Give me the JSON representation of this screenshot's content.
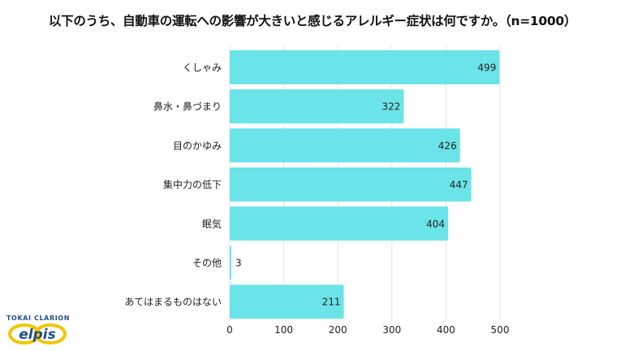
{
  "chart_data": {
    "type": "bar",
    "orientation": "horizontal",
    "title": "以下のうち、自動車の運転への影響が大きいと感じるアレルギー症状は何ですか。（n=1000）",
    "categories": [
      "くしゃみ",
      "鼻水・鼻づまり",
      "目のかゆみ",
      "集中力の低下",
      "眠気",
      "その他",
      "あてはまるものはない"
    ],
    "values": [
      499,
      322,
      426,
      447,
      404,
      3,
      211
    ],
    "xlim": [
      0,
      500
    ],
    "xticks": [
      0,
      100,
      200,
      300,
      400,
      500
    ],
    "xlabel": "",
    "ylabel": "",
    "grid": true,
    "bar_color": "#6ae4e8"
  },
  "logo": {
    "brand": "TOKAI CLARION",
    "name": "elpis"
  }
}
